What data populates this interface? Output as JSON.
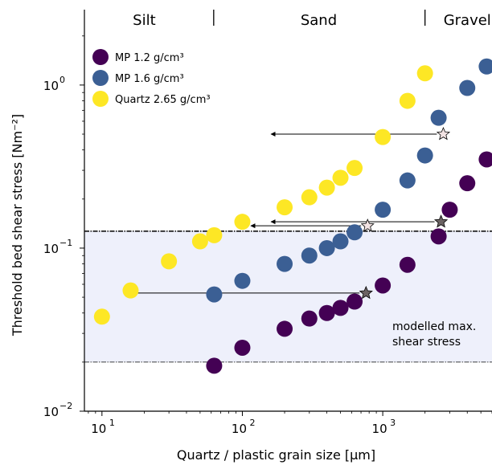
{
  "chart_data": {
    "type": "scatter",
    "xlabel": "Quartz / plastic grain size [μm]",
    "ylabel": "Threshold bed shear stress [Nm⁻²]",
    "xscale": "log",
    "yscale": "log",
    "xlim": [
      7.5,
      6000
    ],
    "ylim": [
      0.01,
      2.9
    ],
    "x_ticks": [
      {
        "value": 10,
        "base": "10",
        "exp": "1"
      },
      {
        "value": 100,
        "base": "10",
        "exp": "2"
      },
      {
        "value": 1000,
        "base": "10",
        "exp": "3"
      }
    ],
    "y_ticks": [
      {
        "value": 0.01,
        "base": "10",
        "exp": "−2"
      },
      {
        "value": 0.1,
        "base": "10",
        "exp": "−1"
      },
      {
        "value": 1,
        "base": "10",
        "exp": "0"
      }
    ],
    "regions": [
      {
        "label": "Silt",
        "x_center": 20
      },
      {
        "label": "Sand",
        "x_center": 350
      },
      {
        "label": "Gravel",
        "x_center": 4000
      }
    ],
    "region_boundaries": [
      62.5,
      2000
    ],
    "shaded_band": {
      "ymin": 0.02,
      "ymax": 0.127,
      "color": "#eef0fb",
      "label_lines": [
        "modelled max.",
        "shear stress"
      ]
    },
    "legend": {
      "position": "top-left"
    },
    "series": [
      {
        "name": "MP 1.2 g/cm³",
        "color": "#440154",
        "points": [
          [
            63,
            0.019
          ],
          [
            100,
            0.0245
          ],
          [
            200,
            0.032
          ],
          [
            300,
            0.037
          ],
          [
            400,
            0.04
          ],
          [
            500,
            0.043
          ],
          [
            630,
            0.047
          ],
          [
            1000,
            0.059
          ],
          [
            1500,
            0.079
          ],
          [
            2500,
            0.118
          ],
          [
            3000,
            0.172
          ],
          [
            4000,
            0.25
          ],
          [
            5500,
            0.35
          ]
        ]
      },
      {
        "name": "MP 1.6 g/cm³",
        "color": "#3b5f94",
        "points": [
          [
            63,
            0.052
          ],
          [
            100,
            0.063
          ],
          [
            200,
            0.08
          ],
          [
            300,
            0.09
          ],
          [
            400,
            0.1
          ],
          [
            500,
            0.11
          ],
          [
            630,
            0.125
          ],
          [
            1000,
            0.172
          ],
          [
            1500,
            0.26
          ],
          [
            2000,
            0.37
          ],
          [
            2500,
            0.63
          ],
          [
            4000,
            0.96
          ],
          [
            5500,
            1.3
          ]
        ]
      },
      {
        "name": "Quartz 2.65 g/cm³",
        "color": "#fde725",
        "points": [
          [
            10,
            0.038
          ],
          [
            16,
            0.055
          ],
          [
            30,
            0.083
          ],
          [
            50,
            0.11
          ],
          [
            63,
            0.12
          ],
          [
            100,
            0.145
          ],
          [
            200,
            0.178
          ],
          [
            300,
            0.205
          ],
          [
            400,
            0.235
          ],
          [
            500,
            0.27
          ],
          [
            630,
            0.31
          ],
          [
            1000,
            0.48
          ],
          [
            1500,
            0.8
          ],
          [
            2000,
            1.18
          ]
        ]
      }
    ],
    "stars": [
      {
        "x": 2700,
        "y": 0.5,
        "to_x": 160,
        "color": "#f2e3e3"
      },
      {
        "x": 2600,
        "y": 0.145,
        "to_x": 160,
        "color": "#6b6363"
      },
      {
        "x": 780,
        "y": 0.137,
        "to_x": 115,
        "color": "#f2e3e3"
      },
      {
        "x": 760,
        "y": 0.053,
        "to_x": 16,
        "color": "#6b6363"
      }
    ]
  }
}
